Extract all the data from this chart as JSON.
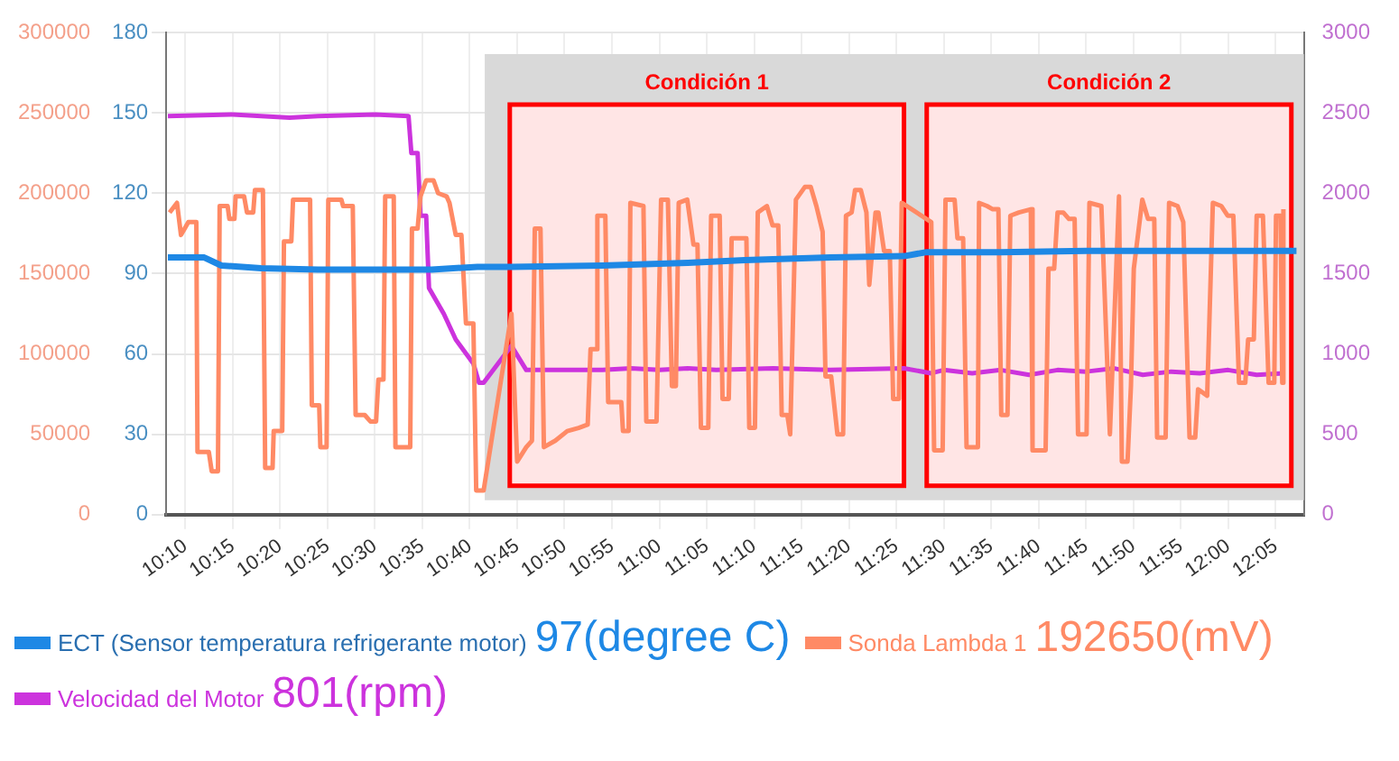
{
  "chart_data": {
    "type": "line",
    "grid": true,
    "legend": "bottom",
    "marker": "none",
    "line_style": "solid",
    "xlim": [
      10.133,
      12.133
    ],
    "xticks": [
      {
        "value": 10.1667,
        "label": "10:10"
      },
      {
        "value": 10.25,
        "label": "10:15"
      },
      {
        "value": 10.3333,
        "label": "10:20"
      },
      {
        "value": 10.4167,
        "label": "10:25"
      },
      {
        "value": 10.5,
        "label": "10:30"
      },
      {
        "value": 10.5833,
        "label": "10:35"
      },
      {
        "value": 10.6667,
        "label": "10:40"
      },
      {
        "value": 10.75,
        "label": "10:45"
      },
      {
        "value": 10.8333,
        "label": "10:50"
      },
      {
        "value": 10.9167,
        "label": "10:55"
      },
      {
        "value": 11,
        "label": "11:00"
      },
      {
        "value": 11.0833,
        "label": "11:05"
      },
      {
        "value": 11.1667,
        "label": "11:10"
      },
      {
        "value": 11.25,
        "label": "11:15"
      },
      {
        "value": 11.3333,
        "label": "11:20"
      },
      {
        "value": 11.4167,
        "label": "11:25"
      },
      {
        "value": 11.5,
        "label": "11:30"
      },
      {
        "value": 11.5833,
        "label": "11:35"
      },
      {
        "value": 11.6667,
        "label": "11:40"
      },
      {
        "value": 11.75,
        "label": "11:45"
      },
      {
        "value": 11.8333,
        "label": "11:50"
      },
      {
        "value": 11.9167,
        "label": "11:55"
      },
      {
        "value": 12,
        "label": "12:00"
      },
      {
        "value": 12.0833,
        "label": "12:05"
      }
    ],
    "ylim": [
      0,
      180
    ],
    "yticks": [
      0,
      30,
      60,
      90,
      120,
      150,
      180
    ],
    "y2lim": [
      0,
      300000
    ],
    "y2ticks": [
      0,
      50000,
      100000,
      150000,
      200000,
      250000,
      300000
    ],
    "y3lim": [
      0,
      3000
    ],
    "y3ticks": [
      0,
      500,
      1000,
      1500,
      2000,
      2500,
      3000
    ],
    "bands": [
      {
        "axis": "x",
        "from": 10.693,
        "to": 12.133,
        "color": "#d9d9d9"
      },
      {
        "axis": "x",
        "from": 10.737,
        "to": 11.43,
        "label": "Condición 1",
        "color": "#ff0000"
      },
      {
        "axis": "x",
        "from": 11.47,
        "to": 12.111,
        "label": "Condición 2",
        "color": "#ff0000"
      }
    ],
    "annotations": [
      "97(degree C)",
      "192650(mV)",
      "801(rpm)"
    ],
    "series": [
      {
        "name": "ECT (Sensor temperatura refrigerante motor)",
        "color": "#1e88e5",
        "axis": "y",
        "x": [
          10.136,
          10.2,
          10.23,
          10.3,
          10.4,
          10.6,
          10.68,
          10.74,
          10.9,
          11.05,
          11.15,
          11.3,
          11.43,
          11.47,
          11.6,
          11.75,
          12.12
        ],
        "values": [
          96,
          96,
          93,
          92,
          91.5,
          91.5,
          92.5,
          92.5,
          93,
          94,
          95,
          96,
          96.5,
          98,
          98,
          98.5,
          98.5
        ]
      },
      {
        "name": "Sonda Lambda 1",
        "color": "#ff8a65",
        "axis": "y2",
        "x": [
          10.139,
          10.152,
          10.159,
          10.172,
          10.186,
          10.188,
          10.208,
          10.213,
          10.224,
          10.227,
          10.241,
          10.244,
          10.253,
          10.255,
          10.27,
          10.275,
          10.286,
          10.289,
          10.303,
          10.307,
          10.32,
          10.322,
          10.337,
          10.34,
          10.353,
          10.356,
          10.386,
          10.389,
          10.402,
          10.404,
          10.415,
          10.418,
          10.441,
          10.444,
          10.461,
          10.466,
          10.482,
          10.492,
          10.502,
          10.506,
          10.515,
          10.518,
          10.533,
          10.536,
          10.562,
          10.565,
          10.575,
          10.58,
          10.59,
          10.603,
          10.611,
          10.626,
          10.631,
          10.642,
          10.652,
          10.66,
          10.673,
          10.678,
          10.691,
          10.74,
          10.75,
          10.766,
          10.776,
          10.781,
          10.791,
          10.797,
          10.817,
          10.838,
          10.858,
          10.874,
          10.879,
          10.889,
          10.891,
          10.905,
          10.91,
          10.933,
          10.936,
          10.946,
          10.949,
          10.972,
          10.977,
          10.995,
          11.003,
          11.015,
          11.022,
          11.029,
          11.034,
          11.049,
          11.06,
          11.067,
          11.073,
          11.086,
          11.091,
          11.106,
          11.111,
          11.122,
          11.127,
          11.153,
          11.158,
          11.168,
          11.173,
          11.189,
          11.199,
          11.209,
          11.215,
          11.225,
          11.23,
          11.24,
          11.256,
          11.266,
          11.276,
          11.287,
          11.292,
          11.302,
          11.313,
          11.323,
          11.328,
          11.338,
          11.344,
          11.354,
          11.364,
          11.369,
          11.38,
          11.385,
          11.395,
          11.405,
          11.411,
          11.421,
          11.426,
          11.478,
          11.483,
          11.498,
          11.503,
          11.519,
          11.524,
          11.534,
          11.54,
          11.56,
          11.562,
          11.576,
          11.586,
          11.596,
          11.601,
          11.612,
          11.617,
          11.632,
          11.653,
          11.656,
          11.679,
          11.684,
          11.694,
          11.7,
          11.71,
          11.72,
          11.73,
          11.736,
          11.751,
          11.756,
          11.777,
          11.792,
          11.808,
          11.813,
          11.823,
          11.829,
          11.834,
          11.849,
          11.859,
          11.87,
          11.875,
          11.89,
          11.896,
          11.911,
          11.921,
          11.932,
          11.942,
          11.947,
          11.963,
          11.973,
          11.988,
          11.999,
          12.009,
          12.019,
          12.03,
          12.035,
          12.045,
          12.05,
          12.061,
          12.071,
          12.081,
          12.084,
          12.092,
          12.095,
          12.097
        ],
        "values": [
          188000,
          194000,
          174000,
          182000,
          182000,
          39000,
          39000,
          27000,
          27000,
          192000,
          192000,
          184000,
          184000,
          198000,
          198000,
          188000,
          188000,
          202000,
          202000,
          29000,
          29000,
          52000,
          52000,
          170000,
          170000,
          196000,
          196000,
          68000,
          68000,
          42000,
          42000,
          196000,
          196000,
          192000,
          192000,
          62000,
          62000,
          58000,
          58000,
          84000,
          84000,
          198000,
          198000,
          42000,
          42000,
          178000,
          178000,
          198000,
          208000,
          208000,
          200000,
          198000,
          194000,
          174000,
          174000,
          119000,
          119000,
          15000,
          15000,
          125000,
          33000,
          42000,
          46000,
          178000,
          178000,
          42000,
          46000,
          52000,
          54000,
          56000,
          103000,
          103000,
          186000,
          186000,
          70000,
          70000,
          52000,
          52000,
          194000,
          192000,
          58000,
          58000,
          196000,
          196000,
          80000,
          80000,
          194000,
          196000,
          168000,
          168000,
          54000,
          54000,
          186000,
          186000,
          72000,
          72000,
          172000,
          172000,
          54000,
          54000,
          188000,
          192000,
          180000,
          180000,
          62000,
          62000,
          50000,
          196000,
          204000,
          204000,
          192000,
          176000,
          86000,
          86000,
          50000,
          50000,
          186000,
          188000,
          202000,
          202000,
          188000,
          143000,
          188000,
          188000,
          164000,
          164000,
          72000,
          72000,
          194000,
          182000,
          40000,
          40000,
          196000,
          196000,
          172000,
          172000,
          42000,
          42000,
          194000,
          192000,
          190000,
          190000,
          62000,
          62000,
          186000,
          188000,
          190000,
          40000,
          40000,
          153000,
          153000,
          188000,
          188000,
          184000,
          184000,
          50000,
          50000,
          194000,
          192000,
          50000,
          198000,
          33000,
          33000,
          80000,
          153000,
          196000,
          184000,
          184000,
          48000,
          48000,
          194000,
          192000,
          182000,
          48000,
          48000,
          78000,
          74000,
          194000,
          192000,
          186000,
          186000,
          82000,
          82000,
          109000,
          109000,
          186000,
          186000,
          82000,
          82000,
          186000,
          186000,
          82000,
          190000
        ]
      },
      {
        "name": "Velocidad del Motor",
        "color": "#cc33dd",
        "axis": "y3",
        "x": [
          10.136,
          10.25,
          10.35,
          10.4,
          10.5,
          10.559,
          10.564,
          10.575,
          10.58,
          10.59,
          10.595,
          10.621,
          10.642,
          10.673,
          10.683,
          10.691,
          10.74,
          10.766,
          10.9,
          10.95,
          11,
          11.05,
          11.1,
          11.2,
          11.3,
          11.43,
          11.478,
          11.5,
          11.55,
          11.6,
          11.65,
          11.7,
          11.75,
          11.8,
          11.85,
          11.9,
          11.95,
          12,
          12.05,
          12.097
        ],
        "values": [
          2480,
          2490,
          2470,
          2480,
          2490,
          2480,
          2250,
          2250,
          1860,
          1860,
          1410,
          1250,
          1090,
          940,
          820,
          820,
          1050,
          900,
          900,
          910,
          900,
          910,
          900,
          910,
          900,
          910,
          880,
          900,
          880,
          900,
          870,
          900,
          890,
          910,
          870,
          890,
          880,
          900,
          870,
          880
        ]
      }
    ]
  }
}
